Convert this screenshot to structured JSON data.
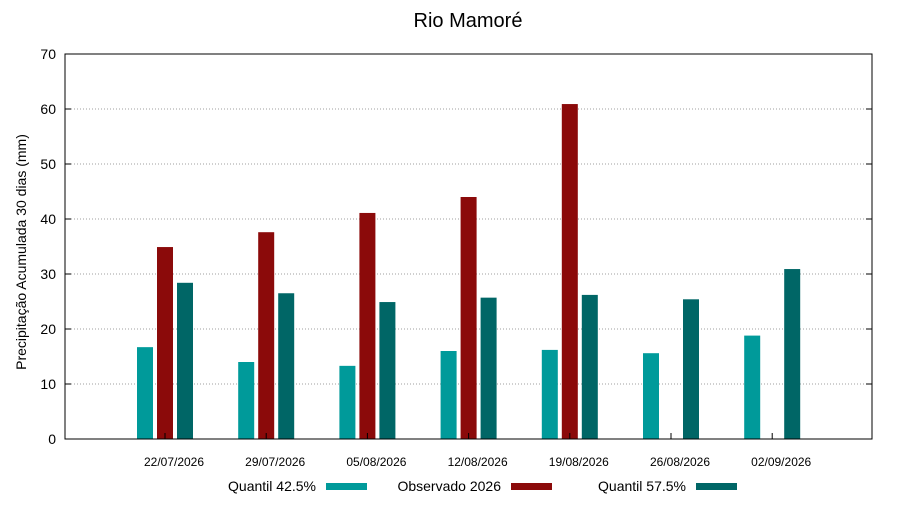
{
  "chart_data": {
    "type": "bar",
    "title": "Rio Mamoré",
    "xlabel": "",
    "ylabel": "Precipitação Acumulada 30 dias (mm)",
    "ylim": [
      0,
      70
    ],
    "yticks": [
      0,
      10,
      20,
      30,
      40,
      50,
      60,
      70
    ],
    "categories": [
      "22/07/2026",
      "29/07/2026",
      "05/08/2026",
      "12/08/2026",
      "19/08/2026",
      "26/08/2026",
      "02/09/2026"
    ],
    "series": [
      {
        "name": "Quantil 42.5%",
        "color": "#009a9a",
        "values": [
          16.7,
          14.0,
          13.3,
          16.0,
          16.2,
          15.6,
          18.8
        ]
      },
      {
        "name": "Observado 2026",
        "color": "#8b0a0a",
        "values": [
          34.9,
          37.6,
          41.1,
          44.0,
          60.9,
          null,
          null
        ]
      },
      {
        "name": "Quantil 57.5%",
        "color": "#006666",
        "values": [
          28.4,
          26.5,
          24.9,
          25.7,
          26.2,
          25.4,
          30.9
        ]
      }
    ],
    "grid": true,
    "legend_position": "bottom"
  }
}
